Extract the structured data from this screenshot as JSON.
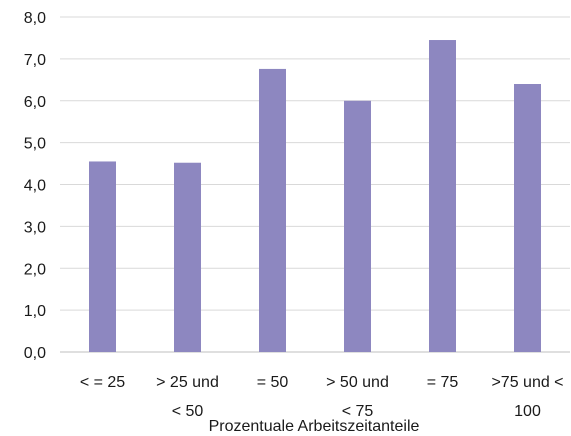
{
  "chart_data": {
    "type": "bar",
    "title": "",
    "xlabel": "Prozentuale Arbeitszeitanteile",
    "ylabel": "",
    "ylim": [
      0,
      8
    ],
    "yticks": [
      "0,0",
      "1,0",
      "2,0",
      "3,0",
      "4,0",
      "5,0",
      "6,0",
      "7,0",
      "8,0"
    ],
    "grid": true,
    "legend": "none",
    "bar_color": "#8d87c0",
    "categories": [
      [
        "< = 25"
      ],
      [
        "> 25 und",
        "< 50"
      ],
      [
        "= 50"
      ],
      [
        "> 50 und",
        "< 75"
      ],
      [
        "= 75"
      ],
      [
        ">75 und <",
        "100"
      ]
    ],
    "values": [
      4.55,
      4.52,
      6.76,
      6.0,
      7.45,
      6.4
    ]
  }
}
